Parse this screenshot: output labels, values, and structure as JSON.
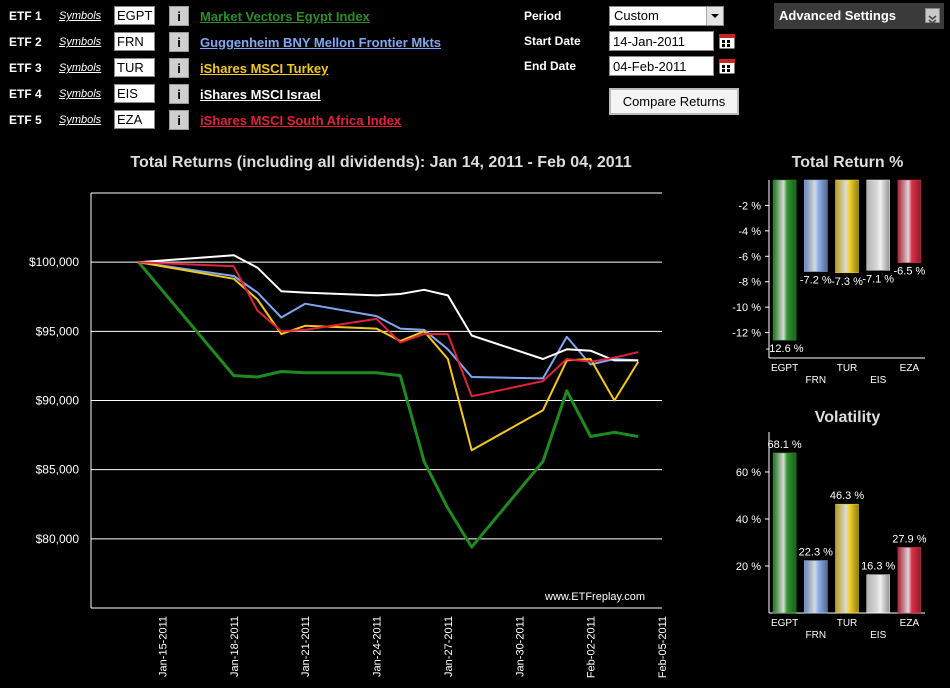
{
  "etfs": [
    {
      "label": "ETF 1",
      "symbols_link": "Symbols",
      "symbol": "EGPT",
      "info": "i",
      "name": "Market Vectors Egypt Index",
      "color": "#2a8c2a"
    },
    {
      "label": "ETF 2",
      "symbols_link": "Symbols",
      "symbol": "FRN",
      "info": "i",
      "name": "Guggenheim BNY Mellon Frontier Mkts",
      "color": "#7fa7f2"
    },
    {
      "label": "ETF 3",
      "symbols_link": "Symbols",
      "symbol": "TUR",
      "info": "i",
      "name": "iShares MSCI Turkey",
      "color": "#f3c81e"
    },
    {
      "label": "ETF 4",
      "symbols_link": "Symbols",
      "symbol": "EIS",
      "info": "i",
      "name": "iShares MSCI Israel",
      "color": "#ffffff"
    },
    {
      "label": "ETF 5",
      "symbols_link": "Symbols",
      "symbol": "EZA",
      "info": "i",
      "name": "iShares MSCI South Africa Index",
      "color": "#e0223a"
    }
  ],
  "controls": {
    "period_label": "Period",
    "period_value": "Custom",
    "start_label": "Start Date",
    "start_value": "14-Jan-2011",
    "end_label": "End Date",
    "end_value": "04-Feb-2011",
    "compare_button": "Compare Returns",
    "advanced_settings": "Advanced Settings"
  },
  "watermark": "www.ETFreplay.com",
  "chart_data": [
    {
      "type": "line",
      "title": "Total Returns (including all dividends): Jan 14, 2011 - Feb 04, 2011",
      "x_tick_labels": [
        "Jan-15-2011",
        "Jan-18-2011",
        "Jan-21-2011",
        "Jan-24-2011",
        "Jan-27-2011",
        "Jan-30-2011",
        "Feb-02-2011",
        "Feb-05-2011"
      ],
      "y_tick_labels": [
        "$80,000",
        "$85,000",
        "$90,000",
        "$95,000",
        "$100,000"
      ],
      "y_ticks": [
        80000,
        85000,
        90000,
        95000,
        100000
      ],
      "ylim": [
        75000,
        105000
      ],
      "x": [
        "2011-01-14",
        "2011-01-18",
        "2011-01-19",
        "2011-01-20",
        "2011-01-21",
        "2011-01-24",
        "2011-01-25",
        "2011-01-26",
        "2011-01-27",
        "2011-01-28",
        "2011-01-31",
        "2011-02-01",
        "2011-02-02",
        "2011-02-03",
        "2011-02-04"
      ],
      "grid": true,
      "series": [
        {
          "color": "#1f8a1f",
          "values": [
            100000,
            91800,
            91700,
            92100,
            92000,
            92000,
            91800,
            85600,
            82200,
            79400,
            85600,
            90700,
            87400,
            87700,
            87400
          ]
        },
        {
          "color": "#7fa7f2",
          "values": [
            100000,
            99000,
            97800,
            96000,
            97000,
            96100,
            95200,
            95100,
            93700,
            91700,
            91600,
            94600,
            92600,
            93000,
            92900
          ]
        },
        {
          "color": "#f3c81e",
          "values": [
            100000,
            98800,
            97300,
            94800,
            95400,
            95200,
            94300,
            95000,
            93000,
            86400,
            89300,
            92900,
            93000,
            90000,
            92800
          ]
        },
        {
          "color": "#ffffff",
          "values": [
            100000,
            100500,
            99600,
            97900,
            97800,
            97600,
            97700,
            98000,
            97600,
            94700,
            93000,
            93700,
            93600,
            92900,
            92900
          ]
        },
        {
          "color": "#e0223a",
          "values": [
            100000,
            99700,
            96500,
            95000,
            95100,
            95900,
            94200,
            94800,
            94800,
            90300,
            91400,
            93000,
            92800,
            93100,
            93500
          ]
        }
      ]
    },
    {
      "type": "bar",
      "title": "Total Return %",
      "categories": [
        "EGPT",
        "FRN",
        "TUR",
        "EIS",
        "EZA"
      ],
      "values": [
        -12.6,
        -7.2,
        -7.3,
        -7.1,
        -6.5
      ],
      "value_labels": [
        "-12.6 %",
        "-7.2 %",
        "-7.3 %",
        "-7.1 %",
        "-6.5 %"
      ],
      "y_tick_labels": [
        "-2 %",
        "-4 %",
        "-6 %",
        "-8 %",
        "-10 %",
        "-12 %"
      ],
      "y_ticks": [
        -2,
        -4,
        -6,
        -8,
        -10,
        -12
      ],
      "ylim": [
        -14,
        0
      ],
      "colors": [
        "#2f9a2f",
        "#8fb2ee",
        "#f3d42c",
        "#f0f0f0",
        "#e0304a"
      ]
    },
    {
      "type": "bar",
      "title": "Volatility",
      "categories": [
        "EGPT",
        "FRN",
        "TUR",
        "EIS",
        "EZA"
      ],
      "values": [
        68.1,
        22.3,
        46.3,
        16.3,
        27.9
      ],
      "value_labels": [
        "68.1 %",
        "22.3 %",
        "46.3 %",
        "16.3 %",
        "27.9 %"
      ],
      "y_tick_labels": [
        "20 %",
        "40 %",
        "60 %"
      ],
      "y_ticks": [
        20,
        40,
        60
      ],
      "ylim": [
        0,
        77
      ],
      "colors": [
        "#2f9a2f",
        "#8fb2ee",
        "#f3d42c",
        "#f0f0f0",
        "#e0304a"
      ]
    }
  ]
}
